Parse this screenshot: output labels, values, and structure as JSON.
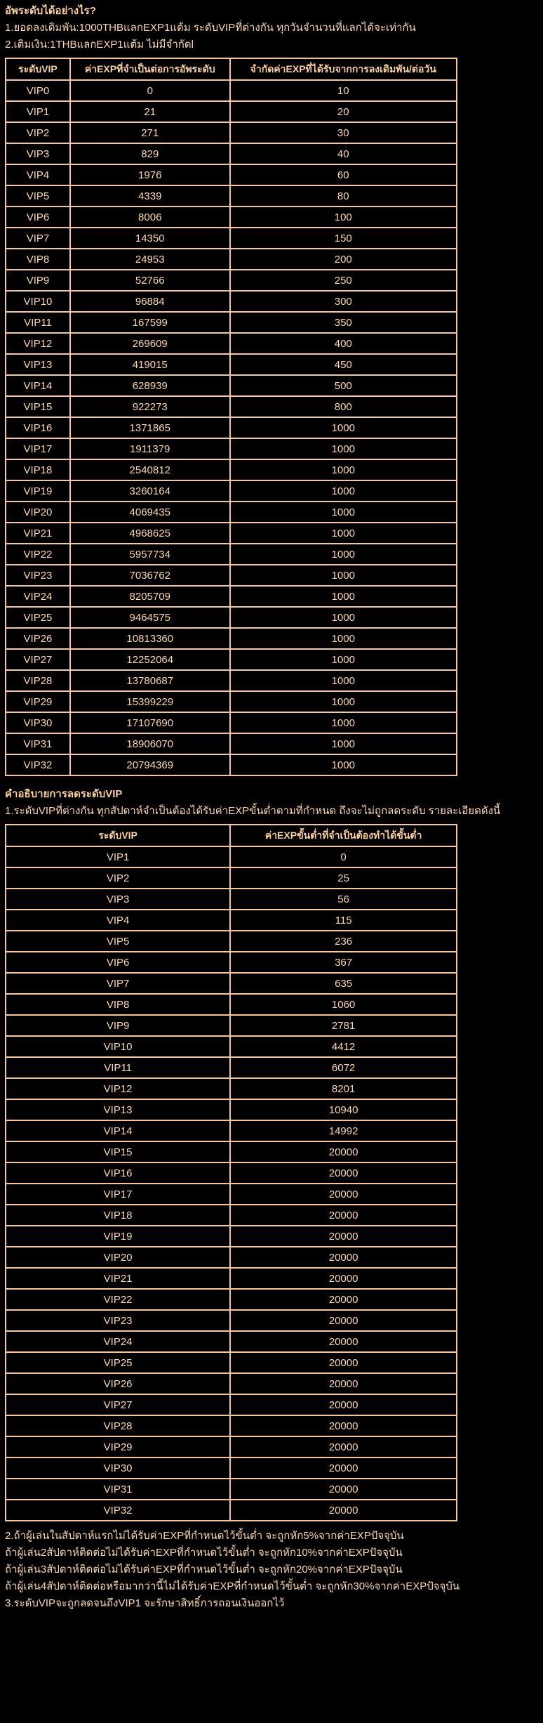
{
  "colors": {
    "background": "#000000",
    "text": "#fbd9ae",
    "border": "#f4c897",
    "heading": "#f8cf9e"
  },
  "intro": {
    "title": "อัพระดับได้อย่างไร?",
    "lines": [
      "1.ยอดลงเดิมพัน:1000THBแลกEXP1แต้ม ระดับVIPที่ต่างกัน ทุกวันจำนวนที่แลกได้จะเท่ากัน",
      "2.เติมเงิน:1THBแลกEXP1แต้ม ไม่มีจำกัดl"
    ]
  },
  "upgrade_table": {
    "headers": [
      "ระดับVIP",
      "ค่าEXPที่จำเป็นต่อการอัพระดับ",
      "จำกัดค่าEXPที่ได้รับจากการลงเดิมพัน/ต่อวัน"
    ],
    "rows": [
      [
        "VIP0",
        "0",
        "10"
      ],
      [
        "VIP1",
        "21",
        "20"
      ],
      [
        "VIP2",
        "271",
        "30"
      ],
      [
        "VIP3",
        "829",
        "40"
      ],
      [
        "VIP4",
        "1976",
        "60"
      ],
      [
        "VIP5",
        "4339",
        "80"
      ],
      [
        "VIP6",
        "8006",
        "100"
      ],
      [
        "VIP7",
        "14350",
        "150"
      ],
      [
        "VIP8",
        "24953",
        "200"
      ],
      [
        "VIP9",
        "52766",
        "250"
      ],
      [
        "VIP10",
        "96884",
        "300"
      ],
      [
        "VIP11",
        "167599",
        "350"
      ],
      [
        "VIP12",
        "269609",
        "400"
      ],
      [
        "VIP13",
        "419015",
        "450"
      ],
      [
        "VIP14",
        "628939",
        "500"
      ],
      [
        "VIP15",
        "922273",
        "800"
      ],
      [
        "VIP16",
        "1371865",
        "1000"
      ],
      [
        "VIP17",
        "1911379",
        "1000"
      ],
      [
        "VIP18",
        "2540812",
        "1000"
      ],
      [
        "VIP19",
        "3260164",
        "1000"
      ],
      [
        "VIP20",
        "4069435",
        "1000"
      ],
      [
        "VIP21",
        "4968625",
        "1000"
      ],
      [
        "VIP22",
        "5957734",
        "1000"
      ],
      [
        "VIP23",
        "7036762",
        "1000"
      ],
      [
        "VIP24",
        "8205709",
        "1000"
      ],
      [
        "VIP25",
        "9464575",
        "1000"
      ],
      [
        "VIP26",
        "10813360",
        "1000"
      ],
      [
        "VIP27",
        "12252064",
        "1000"
      ],
      [
        "VIP28",
        "13780687",
        "1000"
      ],
      [
        "VIP29",
        "15399229",
        "1000"
      ],
      [
        "VIP30",
        "17107690",
        "1000"
      ],
      [
        "VIP31",
        "18906070",
        "1000"
      ],
      [
        "VIP32",
        "20794369",
        "1000"
      ]
    ]
  },
  "downgrade_section": {
    "title": "คำอธิบายการลดระดับVIP",
    "line": "1.ระดับVIPที่ต่างกัน ทุกสัปดาห์จำเป็นต้องได้รับค่าEXPขั้นต่ำตามที่กำหนด ถึงจะไม่ถูกลดระดับ รายละเอียดดังนี้",
    "table": {
      "headers": [
        "ระดับVIP",
        "ค่าEXPขั้นต่ำที่จำเป็นต้องทำได้ขั้นต่ำ"
      ],
      "rows": [
        [
          "VIP1",
          "0"
        ],
        [
          "VIP2",
          "25"
        ],
        [
          "VIP3",
          "56"
        ],
        [
          "VIP4",
          "115"
        ],
        [
          "VIP5",
          "236"
        ],
        [
          "VIP6",
          "367"
        ],
        [
          "VIP7",
          "635"
        ],
        [
          "VIP8",
          "1060"
        ],
        [
          "VIP9",
          "2781"
        ],
        [
          "VIP10",
          "4412"
        ],
        [
          "VIP11",
          "6072"
        ],
        [
          "VIP12",
          "8201"
        ],
        [
          "VIP13",
          "10940"
        ],
        [
          "VIP14",
          "14992"
        ],
        [
          "VIP15",
          "20000"
        ],
        [
          "VIP16",
          "20000"
        ],
        [
          "VIP17",
          "20000"
        ],
        [
          "VIP18",
          "20000"
        ],
        [
          "VIP19",
          "20000"
        ],
        [
          "VIP20",
          "20000"
        ],
        [
          "VIP21",
          "20000"
        ],
        [
          "VIP22",
          "20000"
        ],
        [
          "VIP23",
          "20000"
        ],
        [
          "VIP24",
          "20000"
        ],
        [
          "VIP25",
          "20000"
        ],
        [
          "VIP26",
          "20000"
        ],
        [
          "VIP27",
          "20000"
        ],
        [
          "VIP28",
          "20000"
        ],
        [
          "VIP29",
          "20000"
        ],
        [
          "VIP30",
          "20000"
        ],
        [
          "VIP31",
          "20000"
        ],
        [
          "VIP32",
          "20000"
        ]
      ]
    }
  },
  "notes": [
    "2.ถ้าผู้เล่นในสัปดาห์แรกไม่ได้รับค่าEXPที่กำหนดไว้ขั้นต่ำ จะถูกหัก5%จากค่าEXPปัจจุบัน",
    "ถ้าผู้เล่น2สัปดาห์ติดต่อไม่ได้รับค่าEXPที่กำหนดไว้ขั้นต่ำ จะถูกหัก10%จากค่าEXPปัจจุบัน",
    "ถ้าผู้เล่น3สัปดาห์ติดต่อไม่ได้รับค่าEXPที่กำหนดไว้ขั้นต่ำ จะถูกหัก20%จากค่าEXPปัจจุบัน",
    "ถ้าผู้เล่น4สัปดาห์ติดต่อหรือมากว่านี้ไม่ได้รับค่าEXPที่กำหนดไว้ขั้นต่ำ จะถูกหัก30%จากค่าEXPปัจจุบัน",
    "3.ระดับVIPจะถูกลดจนถึงVIP1 จะรักษาสิทธิ์การถอนเงินออกไว้"
  ]
}
